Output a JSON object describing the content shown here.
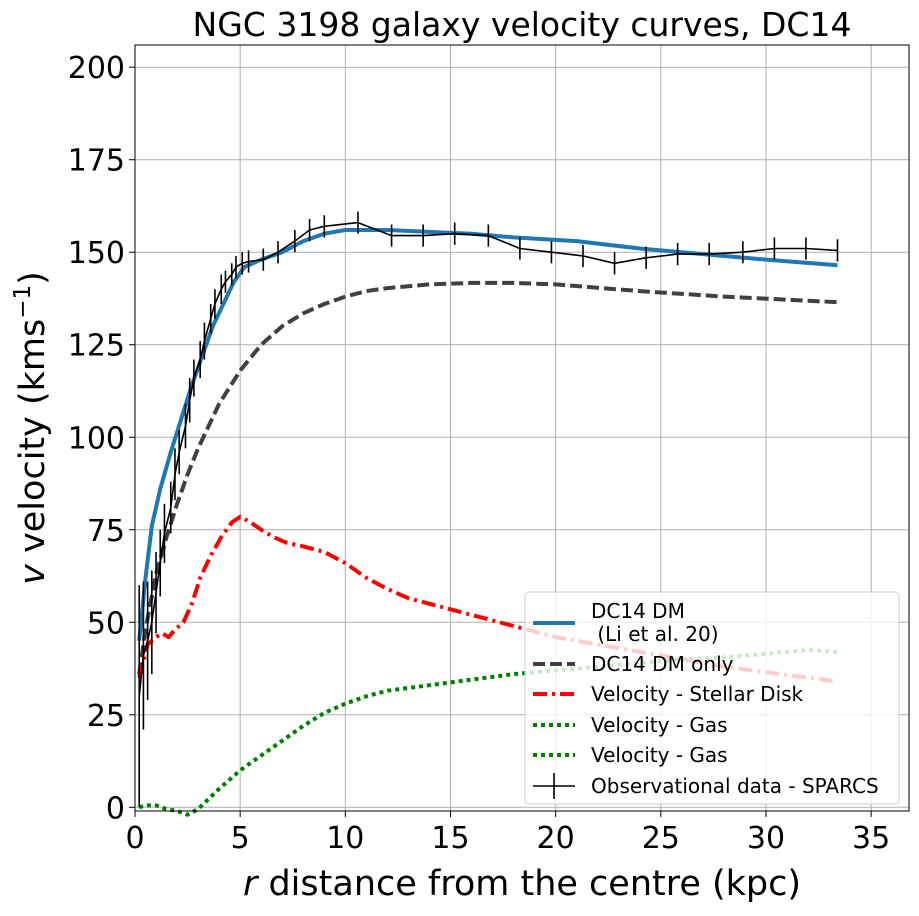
{
  "chart_data": {
    "type": "line",
    "title": "NGC 3198 galaxy velocity curves, DC14",
    "xlabel_var": "r",
    "xlabel_rest": " distance from the centre (kpc)",
    "ylabel_var": "v",
    "ylabel_rest": " velocity (kms",
    "ylabel_sup": "−1",
    "ylabel_close": ")",
    "xlim": [
      0,
      36.8
    ],
    "ylim": [
      -1,
      206
    ],
    "xticks": [
      0,
      5,
      10,
      15,
      20,
      25,
      30,
      35
    ],
    "yticks": [
      0,
      25,
      50,
      75,
      100,
      125,
      150,
      175,
      200
    ],
    "grid": true,
    "legend_position": "lower-right",
    "series": [
      {
        "name": "DC14 DM\n (Li et al. 20)",
        "label_lines": [
          "DC14 DM",
          " (Li et al. 20)"
        ],
        "color": "#1f77b4",
        "style": "solid",
        "x": [
          0.2,
          0.5,
          0.8,
          1.2,
          1.7,
          2.2,
          2.7,
          3.2,
          3.7,
          4.2,
          4.7,
          5.2,
          6.0,
          7.0,
          8.0,
          9.0,
          10.0,
          10.7,
          12.0,
          14.0,
          16.0,
          18.0,
          21.0,
          24.0,
          27.0,
          30.0,
          33.4
        ],
        "y": [
          45,
          62,
          76,
          86,
          96,
          105,
          114,
          122,
          130,
          136,
          142,
          146,
          148,
          150,
          153,
          155,
          156,
          156,
          156,
          155.5,
          155,
          154,
          153,
          151,
          149.5,
          148,
          146.5
        ]
      },
      {
        "name": "DC14 DM only",
        "color": "#404040",
        "style": "dashed",
        "x": [
          0.2,
          0.5,
          1.0,
          1.5,
          2.0,
          2.5,
          3.0,
          3.5,
          4.0,
          5.0,
          6.0,
          7.0,
          8.0,
          9.0,
          10.0,
          11.0,
          12.0,
          14.0,
          16.0,
          18.0,
          20.0,
          24.0,
          28.0,
          33.4
        ],
        "y": [
          36,
          48,
          63,
          73,
          82,
          90,
          97,
          103,
          109,
          118,
          125,
          130,
          133.5,
          136,
          138,
          139.5,
          140.3,
          141.3,
          141.7,
          141.7,
          141.3,
          139.5,
          138,
          136.5
        ]
      },
      {
        "name": "Velocity - Stellar Disk",
        "color": "#ff0000",
        "style": "dashdot",
        "x": [
          0.2,
          0.6,
          1.0,
          1.3,
          1.6,
          1.9,
          2.3,
          2.7,
          3.1,
          3.6,
          4.1,
          4.6,
          5.0,
          5.5,
          6.0,
          6.6,
          7.2,
          8.0,
          9.0,
          10.0,
          11.0,
          12.0,
          13.0,
          14.0,
          16.0,
          18.0,
          20.0,
          22.0,
          24.0,
          26.0,
          28.0,
          30.0,
          32.0,
          33.4
        ],
        "y": [
          35,
          44,
          46,
          47,
          46,
          48,
          50,
          55,
          62,
          68,
          73,
          77,
          78.5,
          77,
          75,
          73,
          71.5,
          70.5,
          69,
          66,
          62,
          59,
          56.5,
          55,
          52,
          49,
          46,
          44,
          42,
          40,
          38,
          36.5,
          35,
          34
        ]
      },
      {
        "name": "Velocity - Gas",
        "color": "#008000",
        "style": "dotted",
        "x": [
          0.2,
          0.5,
          1.0,
          1.5,
          2.0,
          2.5,
          3.0,
          4.0,
          5.0,
          6.0,
          7.0,
          8.0,
          9.0,
          10.0,
          11.0,
          12.0,
          14.0,
          16.0,
          18.0,
          20.0,
          22.0,
          24.0,
          26.0,
          28.0,
          30.0,
          32.0,
          33.4
        ],
        "y": [
          0,
          0.5,
          0.5,
          -0.5,
          -1,
          -2,
          -0.5,
          5,
          10,
          14,
          18,
          22,
          25.5,
          28,
          30,
          31.5,
          33,
          34.5,
          36,
          37,
          38,
          39,
          40,
          40.5,
          41.5,
          42.5,
          42
        ]
      },
      {
        "name": "Velocity - Gas",
        "color": "#008000",
        "style": "dotted",
        "x": [],
        "y": []
      },
      {
        "name": "Observational data - SPARCS",
        "color": "#000000",
        "style": "errorbar",
        "x": [
          0.2,
          0.4,
          0.6,
          0.8,
          1.0,
          1.2,
          1.4,
          1.7,
          1.9,
          2.1,
          2.4,
          2.6,
          2.8,
          3.1,
          3.3,
          3.6,
          3.8,
          4.1,
          4.3,
          4.6,
          4.8,
          5.1,
          5.4,
          6.1,
          6.8,
          7.6,
          8.3,
          9.0,
          10.6,
          12.2,
          13.7,
          15.2,
          16.8,
          18.3,
          19.8,
          21.3,
          22.8,
          24.3,
          25.8,
          27.3,
          28.9,
          30.4,
          31.9,
          33.4
        ],
        "y": [
          30,
          41,
          45,
          50,
          58,
          66,
          74,
          81,
          90,
          96,
          103,
          110,
          116,
          121,
          126,
          132,
          136,
          140,
          142,
          144,
          146,
          147,
          147.5,
          148,
          150,
          153,
          156,
          157,
          158,
          154.5,
          154.5,
          155,
          154.5,
          151,
          150,
          149,
          147,
          148.5,
          149.5,
          149.5,
          150,
          151,
          151,
          150.5
        ],
        "yerr": [
          30,
          20,
          16,
          14,
          11,
          9,
          8,
          7,
          7,
          6,
          6,
          6,
          5,
          5,
          5,
          4,
          4,
          4,
          3,
          3,
          3,
          3,
          3,
          3,
          3,
          3,
          3,
          3,
          3,
          3,
          3,
          3,
          3,
          3,
          3,
          3,
          3,
          3,
          3,
          3,
          3,
          3,
          3,
          3
        ]
      }
    ]
  }
}
